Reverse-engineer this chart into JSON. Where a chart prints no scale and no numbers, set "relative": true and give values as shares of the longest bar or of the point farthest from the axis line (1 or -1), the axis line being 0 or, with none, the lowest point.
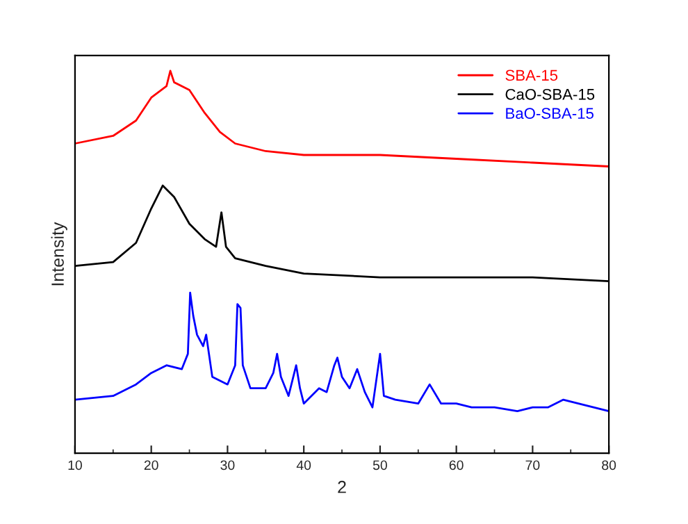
{
  "chart_data": {
    "type": "line",
    "relative": true,
    "xlabel": "2",
    "ylabel": "Intensity",
    "xlim": [
      10,
      80
    ],
    "xticks": [
      10,
      20,
      30,
      40,
      50,
      60,
      70,
      80
    ],
    "tick_labels": "x",
    "grid": false,
    "legend": "top right",
    "line_style": "solid",
    "marker": "none",
    "series": [
      {
        "name": "SBA-15",
        "color": "#ff0000",
        "x": [
          10,
          15,
          18,
          20,
          22,
          22.5,
          23,
          25,
          27,
          29,
          31,
          35,
          40,
          50,
          60,
          70,
          80
        ],
        "values": [
          0.81,
          0.83,
          0.87,
          0.93,
          0.96,
          1.0,
          0.97,
          0.95,
          0.89,
          0.84,
          0.81,
          0.79,
          0.78,
          0.78,
          0.77,
          0.76,
          0.75
        ]
      },
      {
        "name": "CaO-SBA-15",
        "color": "#000000",
        "x": [
          10,
          15,
          18,
          20,
          21.5,
          23,
          25,
          27,
          28.5,
          29.2,
          29.8,
          31,
          35,
          40,
          50,
          60,
          70,
          80
        ],
        "values": [
          0.49,
          0.5,
          0.55,
          0.64,
          0.7,
          0.67,
          0.6,
          0.56,
          0.54,
          0.63,
          0.54,
          0.51,
          0.49,
          0.47,
          0.46,
          0.46,
          0.46,
          0.45
        ]
      },
      {
        "name": "BaO-SBA-15",
        "color": "#0000ff",
        "x": [
          10,
          15,
          18,
          20,
          22,
          24,
          24.8,
          25.1,
          25.5,
          26,
          26.8,
          27.2,
          28,
          30,
          31,
          31.3,
          31.7,
          32,
          33,
          35,
          36,
          36.5,
          37,
          38,
          39,
          39.5,
          40,
          42,
          43,
          44,
          44.4,
          45,
          46,
          47,
          48,
          49,
          50,
          50.5,
          52,
          55,
          56.5,
          58,
          60,
          62,
          65,
          68,
          70,
          72,
          74,
          76,
          78,
          80
        ],
        "values": [
          0.14,
          0.15,
          0.18,
          0.21,
          0.23,
          0.22,
          0.26,
          0.42,
          0.36,
          0.31,
          0.28,
          0.31,
          0.2,
          0.18,
          0.23,
          0.39,
          0.38,
          0.23,
          0.17,
          0.17,
          0.21,
          0.26,
          0.2,
          0.15,
          0.23,
          0.17,
          0.13,
          0.17,
          0.16,
          0.23,
          0.25,
          0.2,
          0.17,
          0.22,
          0.16,
          0.12,
          0.26,
          0.15,
          0.14,
          0.13,
          0.18,
          0.13,
          0.13,
          0.12,
          0.12,
          0.11,
          0.12,
          0.12,
          0.14,
          0.13,
          0.12,
          0.11
        ]
      }
    ]
  }
}
